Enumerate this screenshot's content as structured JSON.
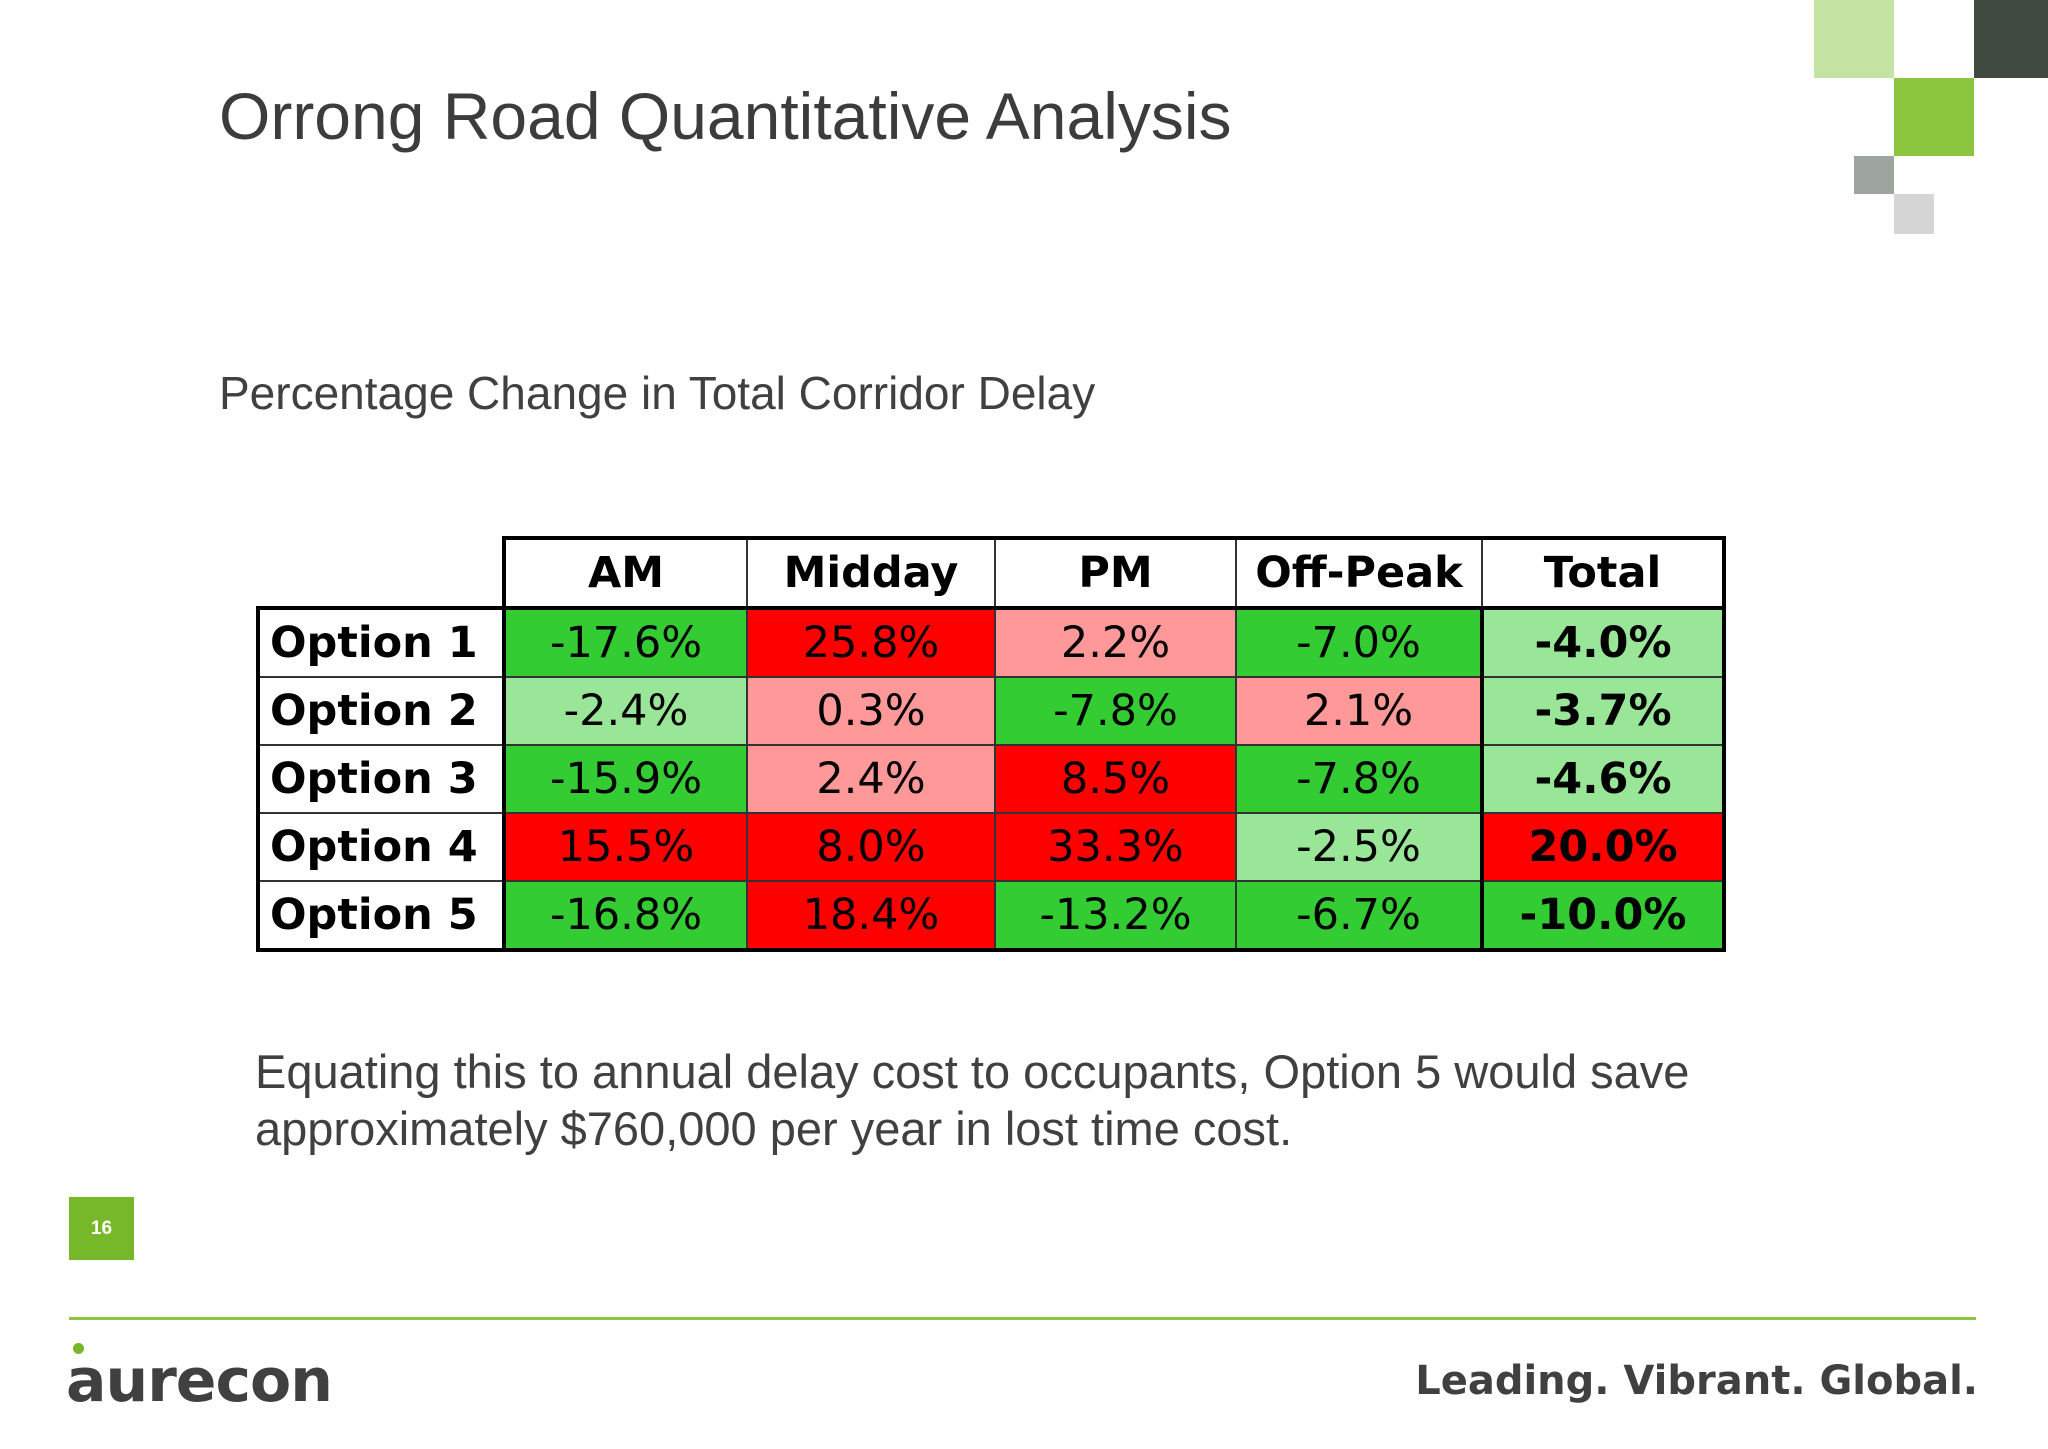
{
  "slide": {
    "title": "Orrong Road Quantitative Analysis",
    "subtitle": "Percentage Change in Total Corridor Delay",
    "body": "Equating this to annual delay cost to occupants, Option 5 would save approximately $760,000 per year in lost time cost.",
    "page_number": "16"
  },
  "table": {
    "columns": [
      "AM",
      "Midday",
      "PM",
      "Off-Peak",
      "Total"
    ],
    "rows": [
      {
        "label": "Option 1",
        "cells": [
          {
            "value": "-17.6%",
            "color": "#33cc33"
          },
          {
            "value": "25.8%",
            "color": "#ff0000"
          },
          {
            "value": "2.2%",
            "color": "#ff9999"
          },
          {
            "value": "-7.0%",
            "color": "#33cc33"
          },
          {
            "value": "-4.0%",
            "color": "#99e699"
          }
        ]
      },
      {
        "label": "Option 2",
        "cells": [
          {
            "value": "-2.4%",
            "color": "#99e699"
          },
          {
            "value": "0.3%",
            "color": "#ff9999"
          },
          {
            "value": "-7.8%",
            "color": "#33cc33"
          },
          {
            "value": "2.1%",
            "color": "#ff9999"
          },
          {
            "value": "-3.7%",
            "color": "#99e699"
          }
        ]
      },
      {
        "label": "Option 3",
        "cells": [
          {
            "value": "-15.9%",
            "color": "#33cc33"
          },
          {
            "value": "2.4%",
            "color": "#ff9999"
          },
          {
            "value": "8.5%",
            "color": "#ff0000"
          },
          {
            "value": "-7.8%",
            "color": "#33cc33"
          },
          {
            "value": "-4.6%",
            "color": "#99e699"
          }
        ]
      },
      {
        "label": "Option 4",
        "cells": [
          {
            "value": "15.5%",
            "color": "#ff0000"
          },
          {
            "value": "8.0%",
            "color": "#ff0000"
          },
          {
            "value": "33.3%",
            "color": "#ff0000"
          },
          {
            "value": "-2.5%",
            "color": "#99e699"
          },
          {
            "value": "20.0%",
            "color": "#ff0000"
          }
        ]
      },
      {
        "label": "Option 5",
        "cells": [
          {
            "value": "-16.8%",
            "color": "#33cc33"
          },
          {
            "value": "18.4%",
            "color": "#ff0000"
          },
          {
            "value": "-13.2%",
            "color": "#33cc33"
          },
          {
            "value": "-6.7%",
            "color": "#33cc33"
          },
          {
            "value": "-10.0%",
            "color": "#33cc33"
          }
        ]
      }
    ]
  },
  "footer": {
    "logo_text": "aurecon",
    "tagline": "Leading. Vibrant. Global.",
    "accent_color": "#76b82a"
  }
}
